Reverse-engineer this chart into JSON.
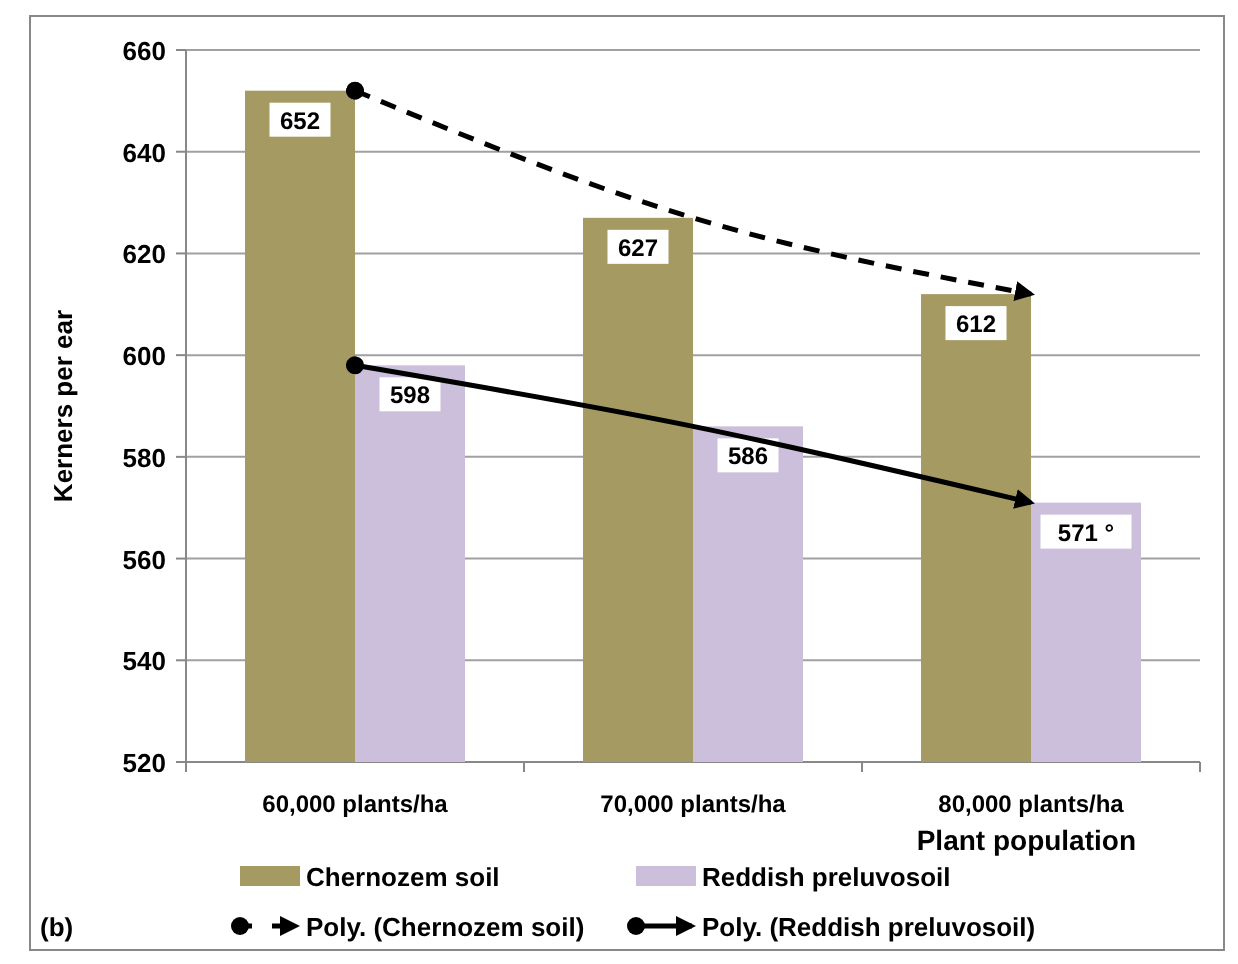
{
  "chart_data": {
    "type": "bar",
    "xlabel": "Plant population",
    "ylabel": "Kerners per ear",
    "categories": [
      "60,000 plants/ha",
      "70,000 plants/ha",
      "80,000 plants/ha"
    ],
    "series": [
      {
        "name": "Chernozem soil",
        "color": "#a69a63",
        "values": [
          652,
          627,
          612
        ],
        "value_labels": [
          "652",
          "627",
          "612"
        ]
      },
      {
        "name": "Reddish preluvosoil",
        "color": "#cbbfdb",
        "values": [
          598,
          586,
          571
        ],
        "value_labels": [
          "598",
          "586",
          "571 °"
        ]
      },
      {
        "name": "Poly. (Chernozem soil)",
        "type": "line",
        "color": "#000000",
        "line_style": "dashed",
        "values": [
          652,
          627,
          612
        ]
      },
      {
        "name": "Poly. (Reddish preluvosoil)",
        "type": "line",
        "color": "#000000",
        "line_style": "solid",
        "values": [
          598,
          586,
          571
        ]
      }
    ],
    "ylim": [
      520,
      660
    ],
    "yticks": [
      520,
      540,
      560,
      580,
      600,
      620,
      640,
      660
    ],
    "grid": "y",
    "legend": "bottom",
    "annotations": [
      "(b)"
    ]
  }
}
